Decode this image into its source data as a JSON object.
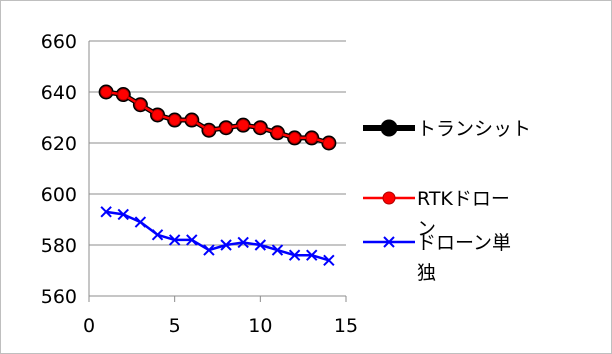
{
  "chart_data": {
    "type": "line",
    "title": "",
    "xlabel": "",
    "ylabel": "",
    "xlim": [
      0,
      15
    ],
    "ylim": [
      560,
      660
    ],
    "xticks": [
      0,
      5,
      10,
      15
    ],
    "yticks": [
      560,
      580,
      600,
      620,
      640,
      660
    ],
    "grid": "horizontal",
    "legend": "right",
    "x": [
      1,
      2,
      3,
      4,
      5,
      6,
      7,
      8,
      9,
      10,
      11,
      12,
      13,
      14
    ],
    "series": [
      {
        "name": "トランシット",
        "color": "#000000",
        "marker": "circle",
        "values": [
          640,
          639,
          635,
          631,
          629,
          629,
          625,
          626,
          627,
          626,
          624,
          622,
          622,
          620
        ]
      },
      {
        "name": "RTKドローン",
        "color": "#ff0000",
        "marker": "circle",
        "values": [
          640,
          639,
          635,
          631,
          629,
          629,
          625,
          626,
          627,
          626,
          624,
          622,
          622,
          620
        ]
      },
      {
        "name": "ドローン単独",
        "color": "#0000ff",
        "marker": "x",
        "values": [
          593,
          592,
          589,
          584,
          582,
          582,
          578,
          580,
          581,
          580,
          578,
          576,
          576,
          574
        ]
      }
    ]
  }
}
